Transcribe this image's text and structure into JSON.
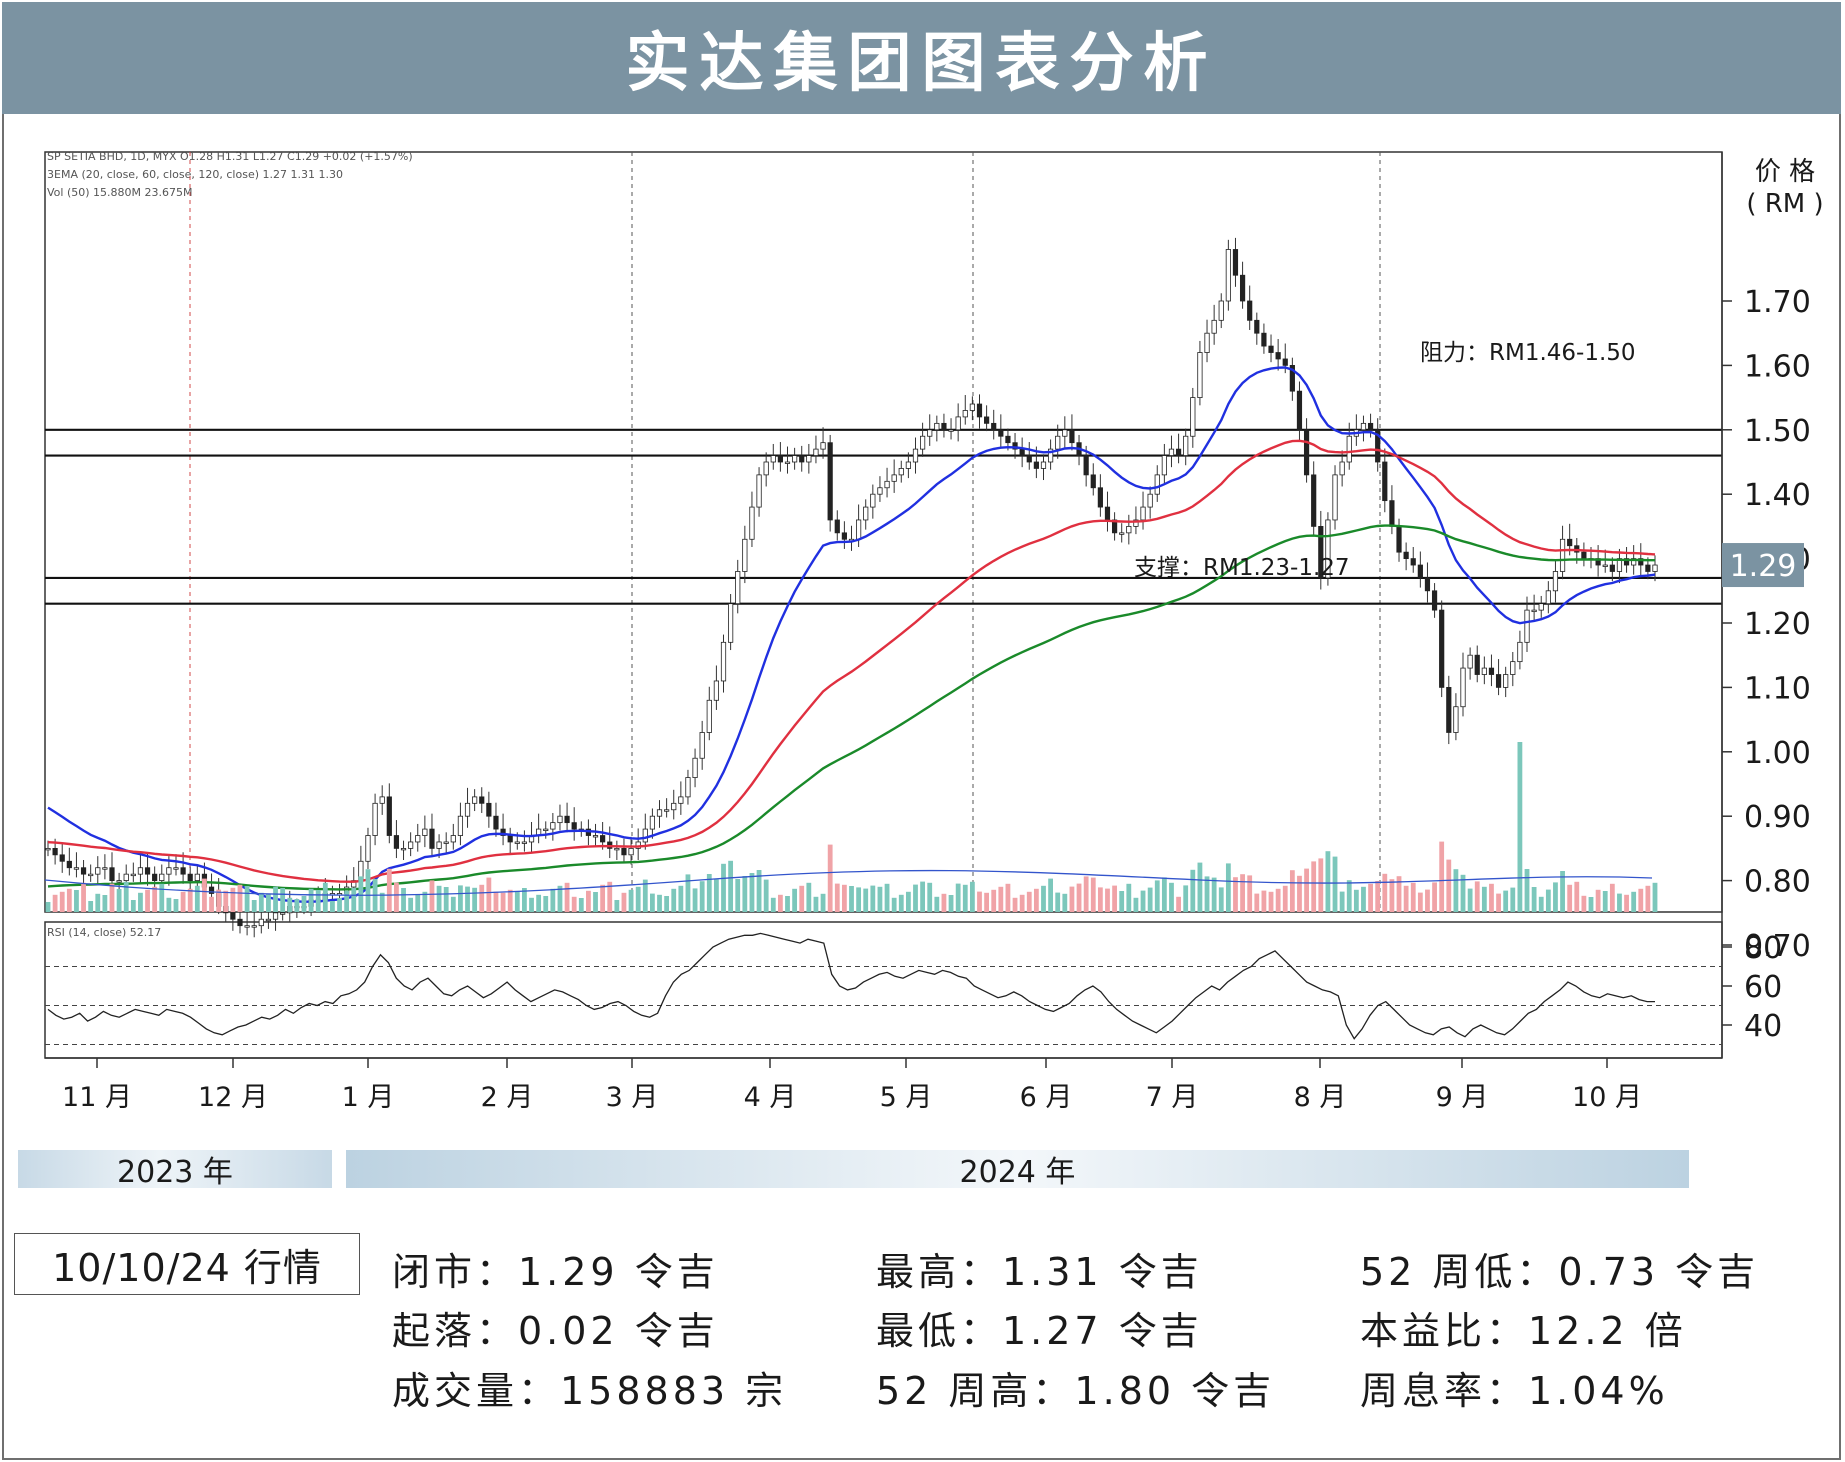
{
  "title": "实达集团图表分析",
  "chart_data": {
    "type": "candlestick",
    "legend_lines": [
      "SP SETIA BHD, 1D, MYX  O1.28 H1.31 L1.27 C1.29 +0.02 (+1.57%)",
      "3EMA (20, close, 60, close, 120, close)  1.27  1.31  1.30",
      "Vol (50)  15.880M  23.675M"
    ],
    "rsi_legend": "RSI (14, close)  52.17",
    "price_axis_label": [
      "价 格",
      "( RM )"
    ],
    "price_ticks": [
      "1.70",
      "1.60",
      "1.50",
      "1.40",
      "1.30",
      "1.20",
      "1.10",
      "1.00",
      "0.90",
      "0.80",
      "0.70"
    ],
    "rsi_ticks": [
      "80",
      "60",
      "40"
    ],
    "month_labels": [
      "11 月",
      "12 月",
      "1 月",
      "2 月",
      "3 月",
      "4 月",
      "5 月",
      "6 月",
      "7 月",
      "8 月",
      "9 月",
      "10 月"
    ],
    "year_labels": [
      "2023 年",
      "2024 年"
    ],
    "last_price_label": "1.29",
    "horizontal_levels": [
      1.5,
      1.46,
      1.27,
      1.23
    ],
    "annotations": {
      "resistance": "阻力：RM1.46-1.50",
      "support": "支撑：RM1.23-1.27"
    },
    "ylim": [
      0.68,
      1.82
    ],
    "rsi_ylim": [
      28,
      88
    ],
    "rsi_levels": [
      70,
      50,
      30
    ],
    "close_series": [
      0.85,
      0.84,
      0.83,
      0.82,
      0.82,
      0.81,
      0.81,
      0.82,
      0.82,
      0.8,
      0.8,
      0.81,
      0.81,
      0.82,
      0.81,
      0.8,
      0.81,
      0.82,
      0.82,
      0.81,
      0.8,
      0.81,
      0.79,
      0.78,
      0.76,
      0.75,
      0.74,
      0.73,
      0.73,
      0.73,
      0.74,
      0.74,
      0.75,
      0.75,
      0.76,
      0.76,
      0.76,
      0.77,
      0.77,
      0.78,
      0.78,
      0.78,
      0.79,
      0.8,
      0.83,
      0.87,
      0.92,
      0.93,
      0.87,
      0.85,
      0.85,
      0.86,
      0.87,
      0.88,
      0.85,
      0.86,
      0.86,
      0.87,
      0.9,
      0.92,
      0.93,
      0.92,
      0.9,
      0.88,
      0.87,
      0.86,
      0.86,
      0.86,
      0.87,
      0.88,
      0.88,
      0.89,
      0.9,
      0.89,
      0.88,
      0.88,
      0.87,
      0.87,
      0.86,
      0.85,
      0.85,
      0.84,
      0.85,
      0.86,
      0.88,
      0.9,
      0.91,
      0.91,
      0.92,
      0.93,
      0.96,
      0.99,
      1.03,
      1.08,
      1.11,
      1.17,
      1.23,
      1.28,
      1.33,
      1.38,
      1.43,
      1.45,
      1.46,
      1.45,
      1.45,
      1.46,
      1.45,
      1.46,
      1.47,
      1.48,
      1.36,
      1.34,
      1.33,
      1.33,
      1.36,
      1.38,
      1.4,
      1.41,
      1.42,
      1.43,
      1.44,
      1.45,
      1.47,
      1.49,
      1.5,
      1.51,
      1.5,
      1.5,
      1.52,
      1.53,
      1.54,
      1.52,
      1.51,
      1.5,
      1.49,
      1.48,
      1.47,
      1.46,
      1.45,
      1.44,
      1.45,
      1.47,
      1.49,
      1.5,
      1.48,
      1.46,
      1.43,
      1.41,
      1.38,
      1.36,
      1.34,
      1.34,
      1.35,
      1.36,
      1.38,
      1.4,
      1.43,
      1.46,
      1.47,
      1.46,
      1.49,
      1.55,
      1.62,
      1.65,
      1.67,
      1.7,
      1.78,
      1.74,
      1.7,
      1.67,
      1.65,
      1.63,
      1.62,
      1.61,
      1.6,
      1.56,
      1.5,
      1.43,
      1.35,
      1.27,
      1.36,
      1.43,
      1.45,
      1.49,
      1.5,
      1.51,
      1.5,
      1.45,
      1.39,
      1.35,
      1.31,
      1.3,
      1.29,
      1.27,
      1.25,
      1.22,
      1.1,
      1.03,
      1.07,
      1.13,
      1.15,
      1.12,
      1.13,
      1.12,
      1.1,
      1.12,
      1.14,
      1.17,
      1.22,
      1.22,
      1.23,
      1.25,
      1.28,
      1.33,
      1.32,
      1.31,
      1.3,
      1.3,
      1.29,
      1.29,
      1.28,
      1.3,
      1.29,
      1.3,
      1.29,
      1.28,
      1.29
    ],
    "ema_lines": [
      {
        "name": "EMA 20",
        "color": "#2030e0",
        "end_value": 1.27
      },
      {
        "name": "EMA 60",
        "color": "#e03040",
        "end_value": 1.31
      },
      {
        "name": "EMA 120",
        "color": "#1a8a2a",
        "end_value": 1.3
      }
    ],
    "volume_panel": {
      "min_label": "",
      "peak_day_index": 207
    },
    "rsi_series": [
      48,
      45,
      43,
      44,
      46,
      42,
      44,
      47,
      45,
      44,
      46,
      48,
      47,
      46,
      45,
      48,
      47,
      46,
      44,
      41,
      38,
      36,
      35,
      37,
      39,
      40,
      42,
      44,
      43,
      45,
      48,
      46,
      49,
      51,
      50,
      52,
      51,
      55,
      56,
      58,
      62,
      70,
      76,
      72,
      64,
      60,
      58,
      62,
      64,
      60,
      56,
      55,
      58,
      60,
      57,
      54,
      56,
      59,
      62,
      58,
      55,
      52,
      54,
      56,
      58,
      57,
      55,
      53,
      50,
      48,
      49,
      51,
      52,
      50,
      47,
      45,
      44,
      46,
      55,
      62,
      66,
      68,
      72,
      76,
      80,
      82,
      84,
      85,
      86,
      86,
      87,
      86,
      85,
      84,
      83,
      82,
      84,
      83,
      82,
      66,
      60,
      58,
      59,
      62,
      64,
      66,
      67,
      65,
      64,
      66,
      68,
      67,
      66,
      68,
      67,
      65,
      64,
      60,
      58,
      56,
      54,
      55,
      57,
      55,
      52,
      50,
      48,
      47,
      49,
      51,
      55,
      58,
      60,
      57,
      52,
      48,
      45,
      42,
      40,
      38,
      36,
      39,
      42,
      46,
      50,
      54,
      57,
      60,
      58,
      62,
      65,
      68,
      70,
      74,
      76,
      78,
      74,
      70,
      66,
      62,
      60,
      58,
      57,
      55,
      40,
      33,
      38,
      45,
      50,
      52,
      48,
      44,
      40,
      38,
      36,
      35,
      38,
      39,
      36,
      34,
      38,
      40,
      38,
      36,
      35,
      38,
      42,
      46,
      48,
      52,
      55,
      58,
      62,
      60,
      57,
      55,
      54,
      56,
      55,
      54,
      55,
      53,
      52,
      52
    ]
  },
  "quote": {
    "label": "10/10/24 行情",
    "rows": [
      [
        "闭市：1.29 令吉",
        "最高：1.31 令吉",
        "52 周低：0.73 令吉"
      ],
      [
        "起落：0.02 令吉",
        "最低：1.27 令吉",
        "本益比：12.2 倍"
      ],
      [
        "成交量：158883 宗",
        "52 周高：1.80 令吉",
        "周息率：1.04%"
      ]
    ]
  }
}
